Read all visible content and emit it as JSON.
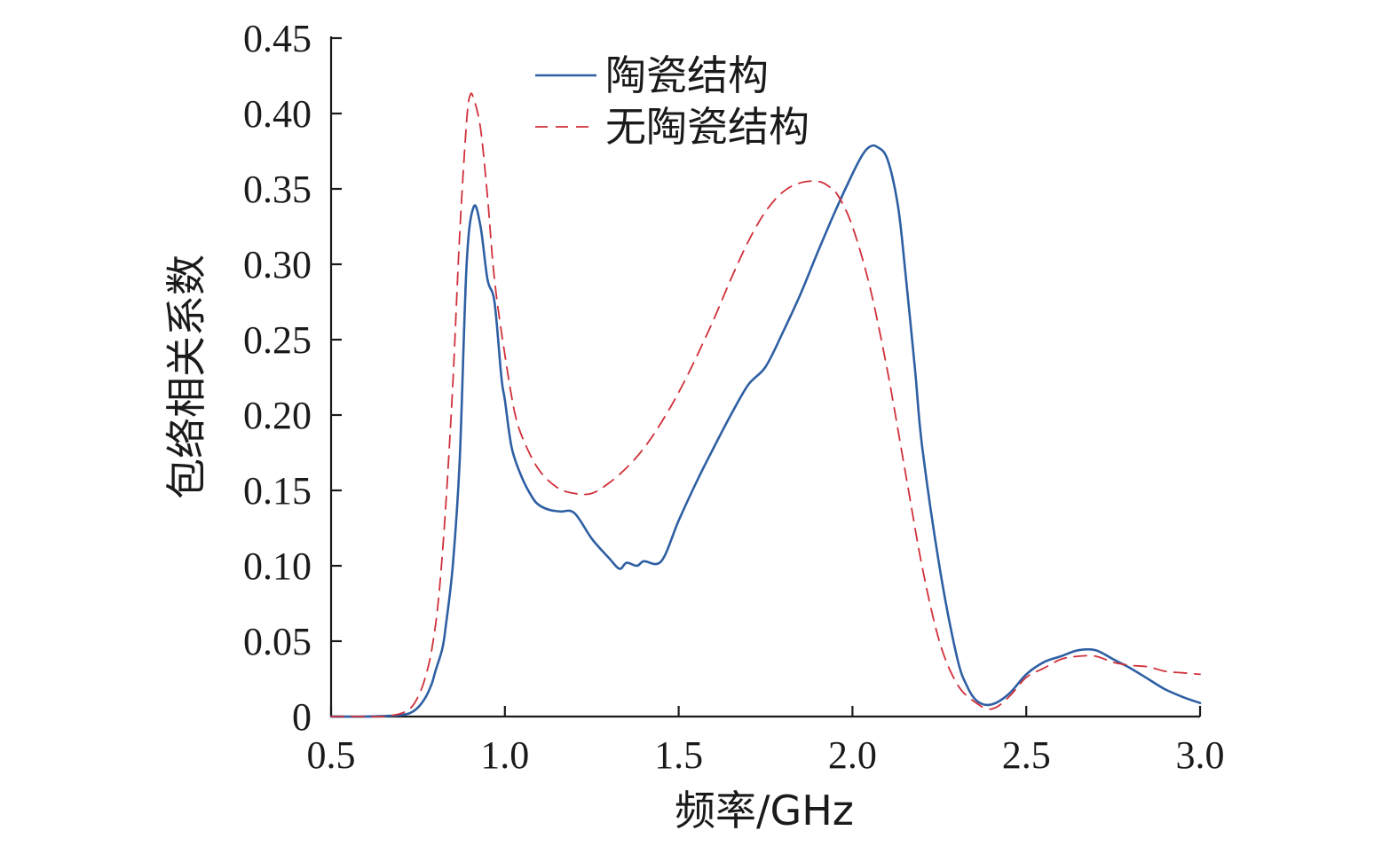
{
  "chart_data": {
    "type": "line",
    "title": "",
    "xlabel": "频率/GHz",
    "ylabel": "包络相关系数",
    "xlim": [
      0.5,
      3.0
    ],
    "ylim": [
      0,
      0.45
    ],
    "xticks": [
      "0.5",
      "1.0",
      "1.5",
      "2.0",
      "2.5",
      "3.0"
    ],
    "yticks": [
      "0",
      "0.05",
      "0.10",
      "0.15",
      "0.20",
      "0.25",
      "0.30",
      "0.35",
      "0.40",
      "0.45"
    ],
    "xtick_values": [
      0.5,
      1.0,
      1.5,
      2.0,
      2.5,
      3.0
    ],
    "ytick_values": [
      0,
      0.05,
      0.1,
      0.15,
      0.2,
      0.25,
      0.3,
      0.35,
      0.4,
      0.45
    ],
    "grid": false,
    "legend": "top-center",
    "series": [
      {
        "name": "陶瓷结构",
        "color": "#2e5fa3",
        "dash": "solid",
        "x": [
          0.5,
          0.6,
          0.7,
          0.74,
          0.77,
          0.79,
          0.8,
          0.82,
          0.83,
          0.85,
          0.87,
          0.89,
          0.91,
          0.93,
          0.95,
          0.97,
          0.99,
          1.0,
          1.02,
          1.05,
          1.08,
          1.1,
          1.13,
          1.16,
          1.2,
          1.25,
          1.3,
          1.33,
          1.35,
          1.38,
          1.4,
          1.45,
          1.5,
          1.55,
          1.6,
          1.65,
          1.7,
          1.75,
          1.8,
          1.85,
          1.9,
          1.95,
          2.0,
          2.03,
          2.05,
          2.07,
          2.1,
          2.13,
          2.15,
          2.18,
          2.2,
          2.25,
          2.3,
          2.33,
          2.36,
          2.4,
          2.45,
          2.5,
          2.55,
          2.6,
          2.65,
          2.7,
          2.75,
          2.8,
          2.85,
          2.9,
          2.95,
          3.0
        ],
        "y": [
          0,
          0,
          0.001,
          0.004,
          0.012,
          0.022,
          0.03,
          0.045,
          0.06,
          0.1,
          0.17,
          0.3,
          0.338,
          0.325,
          0.29,
          0.275,
          0.225,
          0.21,
          0.178,
          0.158,
          0.145,
          0.14,
          0.137,
          0.136,
          0.135,
          0.118,
          0.105,
          0.098,
          0.102,
          0.1,
          0.103,
          0.103,
          0.13,
          0.155,
          0.178,
          0.2,
          0.22,
          0.232,
          0.255,
          0.28,
          0.308,
          0.335,
          0.36,
          0.373,
          0.378,
          0.378,
          0.37,
          0.34,
          0.3,
          0.23,
          0.18,
          0.1,
          0.04,
          0.02,
          0.01,
          0.008,
          0.015,
          0.028,
          0.036,
          0.04,
          0.044,
          0.044,
          0.038,
          0.032,
          0.025,
          0.018,
          0.013,
          0.009
        ]
      },
      {
        "name": "无陶瓷结构",
        "color": "#d0303a",
        "dash": "dashed",
        "x": [
          0.5,
          0.6,
          0.65,
          0.7,
          0.73,
          0.75,
          0.77,
          0.79,
          0.81,
          0.83,
          0.85,
          0.87,
          0.89,
          0.9,
          0.91,
          0.93,
          0.95,
          0.97,
          1.0,
          1.03,
          1.06,
          1.1,
          1.15,
          1.2,
          1.25,
          1.3,
          1.35,
          1.4,
          1.45,
          1.5,
          1.55,
          1.6,
          1.65,
          1.7,
          1.75,
          1.8,
          1.85,
          1.9,
          1.93,
          1.96,
          2.0,
          2.05,
          2.1,
          2.15,
          2.2,
          2.25,
          2.3,
          2.35,
          2.4,
          2.45,
          2.5,
          2.55,
          2.6,
          2.65,
          2.7,
          2.75,
          2.8,
          2.85,
          2.9,
          2.95,
          3.0
        ],
        "y": [
          0,
          0,
          0,
          0.002,
          0.006,
          0.013,
          0.025,
          0.045,
          0.08,
          0.14,
          0.22,
          0.32,
          0.395,
          0.412,
          0.41,
          0.39,
          0.345,
          0.29,
          0.24,
          0.2,
          0.18,
          0.163,
          0.152,
          0.148,
          0.148,
          0.155,
          0.165,
          0.178,
          0.195,
          0.215,
          0.238,
          0.263,
          0.29,
          0.315,
          0.335,
          0.348,
          0.354,
          0.355,
          0.352,
          0.345,
          0.325,
          0.285,
          0.23,
          0.165,
          0.1,
          0.05,
          0.022,
          0.01,
          0.005,
          0.013,
          0.026,
          0.032,
          0.038,
          0.04,
          0.04,
          0.036,
          0.034,
          0.033,
          0.03,
          0.029,
          0.028
        ]
      }
    ]
  }
}
